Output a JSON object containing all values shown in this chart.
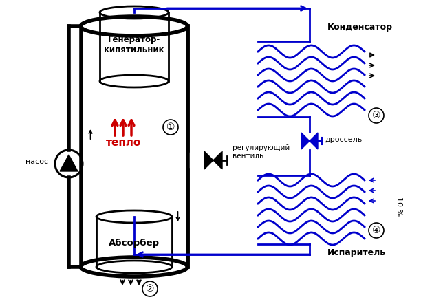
{
  "bg_color": "#ffffff",
  "black": "#000000",
  "blue": "#0000cc",
  "red": "#cc0000",
  "labels": {
    "generator": "Генератор-\nкипятильник",
    "absorber": "Абсорбер",
    "condenser": "Конденсатор",
    "evaporator": "Испаритель",
    "throttle": "дроссель",
    "regvalve": "регулирующий\nвентиль",
    "nasoc": "насос",
    "teplo": "тепло",
    "ten_percent": "10 %"
  }
}
